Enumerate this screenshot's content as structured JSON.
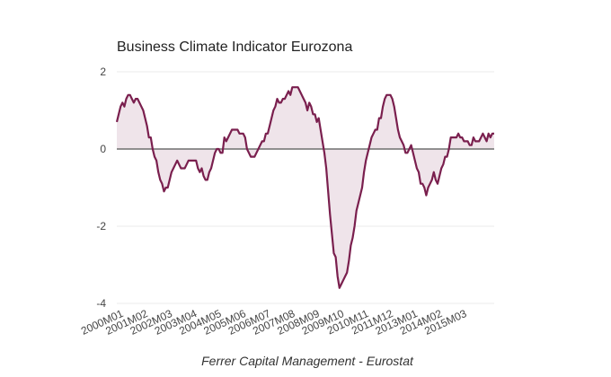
{
  "chart_data": {
    "type": "area",
    "title": "Business Climate Indicator Eurozona",
    "caption": "Ferrer Capital Management - Eurostat",
    "xlabel": "",
    "ylabel": "",
    "ylim": [
      -4,
      2
    ],
    "yticks": [
      2,
      0,
      -2,
      -4
    ],
    "grid": true,
    "legend": "none",
    "colors": {
      "line": "#7a1f4e",
      "fill": "#efe4ea",
      "zero_line": "#6e6e6e",
      "grid": "#ebebeb"
    },
    "start_period": "2000M01",
    "xtick_labels": [
      "2000M01",
      "2001M02",
      "2002M03",
      "2003M04",
      "2004M05",
      "2005M06",
      "2006M07",
      "2007M08",
      "2008M09",
      "2009M10",
      "2010M11",
      "2011M12",
      "2013M01",
      "2014M02",
      "2015M03"
    ],
    "xtick_step_months": 13,
    "series": [
      {
        "name": "Business Climate Indicator",
        "values": [
          0.7,
          0.9,
          1.1,
          1.2,
          1.1,
          1.3,
          1.4,
          1.4,
          1.3,
          1.2,
          1.3,
          1.3,
          1.2,
          1.1,
          1.0,
          0.8,
          0.6,
          0.3,
          0.3,
          0.0,
          -0.2,
          -0.3,
          -0.6,
          -0.8,
          -0.9,
          -1.1,
          -1.0,
          -1.0,
          -0.8,
          -0.6,
          -0.5,
          -0.4,
          -0.3,
          -0.4,
          -0.5,
          -0.5,
          -0.5,
          -0.4,
          -0.3,
          -0.3,
          -0.3,
          -0.3,
          -0.3,
          -0.5,
          -0.6,
          -0.5,
          -0.7,
          -0.8,
          -0.8,
          -0.6,
          -0.5,
          -0.3,
          -0.1,
          0.0,
          0.0,
          -0.1,
          -0.1,
          0.3,
          0.2,
          0.3,
          0.4,
          0.5,
          0.5,
          0.5,
          0.5,
          0.4,
          0.4,
          0.4,
          0.3,
          0.0,
          -0.1,
          -0.2,
          -0.2,
          -0.2,
          -0.1,
          0.0,
          0.1,
          0.2,
          0.2,
          0.4,
          0.4,
          0.6,
          0.8,
          1.0,
          1.1,
          1.3,
          1.2,
          1.2,
          1.3,
          1.3,
          1.4,
          1.5,
          1.4,
          1.6,
          1.6,
          1.6,
          1.6,
          1.5,
          1.4,
          1.3,
          1.2,
          1.0,
          1.2,
          1.1,
          0.9,
          0.9,
          0.7,
          0.8,
          0.5,
          0.2,
          -0.1,
          -0.5,
          -1.1,
          -1.7,
          -2.2,
          -2.7,
          -2.8,
          -3.3,
          -3.6,
          -3.5,
          -3.4,
          -3.3,
          -3.2,
          -2.9,
          -2.5,
          -2.3,
          -2.0,
          -1.6,
          -1.4,
          -1.2,
          -1.0,
          -0.6,
          -0.3,
          -0.1,
          0.1,
          0.3,
          0.4,
          0.5,
          0.5,
          0.8,
          0.8,
          1.1,
          1.3,
          1.4,
          1.4,
          1.4,
          1.3,
          1.1,
          0.8,
          0.5,
          0.3,
          0.2,
          0.1,
          -0.1,
          -0.1,
          0.0,
          0.1,
          -0.1,
          -0.3,
          -0.5,
          -0.6,
          -0.9,
          -0.9,
          -1.0,
          -1.2,
          -1.0,
          -0.9,
          -0.8,
          -0.6,
          -0.8,
          -0.9,
          -0.7,
          -0.5,
          -0.4,
          -0.2,
          -0.2,
          0.0,
          0.3,
          0.3,
          0.3,
          0.3,
          0.4,
          0.3,
          0.3,
          0.2,
          0.2,
          0.2,
          0.1,
          0.1,
          0.3,
          0.2,
          0.2,
          0.2,
          0.3,
          0.4,
          0.3,
          0.2,
          0.4,
          0.3,
          0.4,
          0.4
        ]
      }
    ]
  }
}
